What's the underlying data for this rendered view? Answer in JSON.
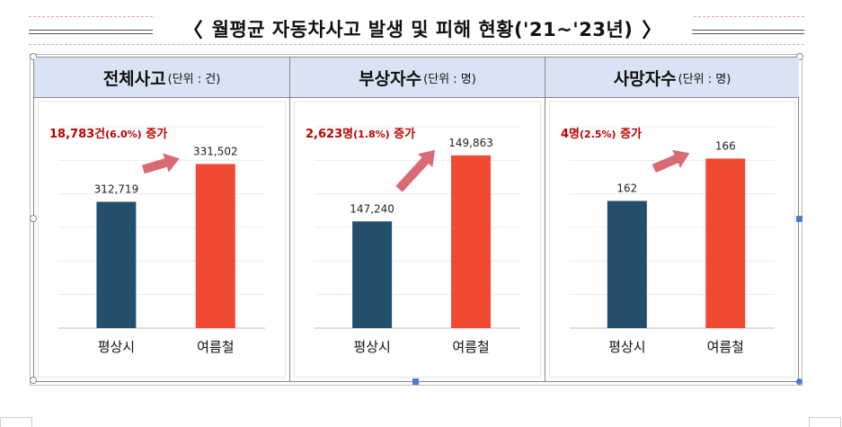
{
  "title": {
    "left_bracket": "〈",
    "text": "월평균 자동차사고 발생 및 피해 현황('21~'23년)",
    "right_bracket": "〉"
  },
  "panels": [
    {
      "heading": "전체사고",
      "unit": "(단위 : 건)",
      "annotation_main": "18,783건",
      "annotation_pct": "(6.0%)",
      "annotation_suffix": " 증가"
    },
    {
      "heading": "부상자수",
      "unit": "(단위 : 명)",
      "annotation_main": "2,623명",
      "annotation_pct": "(1.8%)",
      "annotation_suffix": " 증가"
    },
    {
      "heading": "사망자수",
      "unit": "(단위 : 명)",
      "annotation_main": "4명",
      "annotation_pct": "(2.5%)",
      "annotation_suffix": " 증가"
    }
  ],
  "colors": {
    "normal": "#234e6c",
    "summer": "#f04a32",
    "arrow": "#d96a74",
    "annotation": "#c00000",
    "header_bg": "#dae3f3"
  },
  "chart_data": [
    {
      "type": "bar",
      "categories": [
        "평상시",
        "여름철"
      ],
      "values": [
        312719,
        331502
      ],
      "value_labels": [
        "312,719",
        "331,502"
      ],
      "ylim": [
        250000,
        350000
      ],
      "grid": true
    },
    {
      "type": "bar",
      "categories": [
        "평상시",
        "여름철"
      ],
      "values": [
        147240,
        149863
      ],
      "value_labels": [
        "147,240",
        "149,863"
      ],
      "ylim": [
        143000,
        151000
      ],
      "grid": true
    },
    {
      "type": "bar",
      "categories": [
        "평상시",
        "여름철"
      ],
      "values": [
        162,
        166
      ],
      "value_labels": [
        "162",
        "166"
      ],
      "ylim": [
        150,
        169
      ],
      "grid": true
    }
  ]
}
